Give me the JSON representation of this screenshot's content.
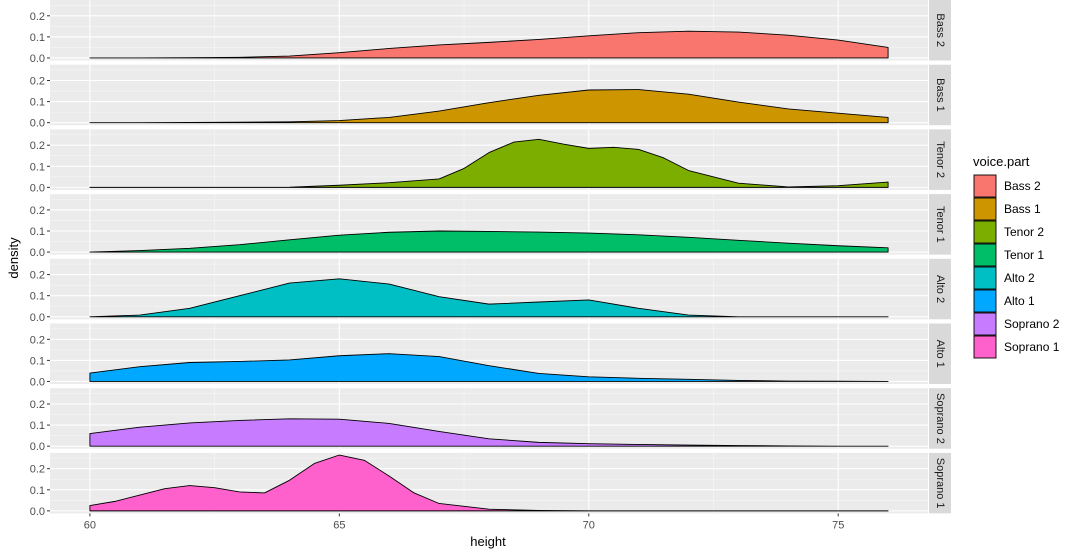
{
  "chart_data": {
    "type": "area",
    "xlabel": "height",
    "ylabel": "density",
    "xlim": [
      59.2,
      76.8
    ],
    "ylim": [
      -0.012,
      0.275
    ],
    "x_ticks": [
      60,
      65,
      70,
      75
    ],
    "y_ticks": [
      0.0,
      0.1,
      0.2
    ],
    "y_tick_labels": [
      "0.0",
      "0.1",
      "0.2"
    ],
    "facet": "rows",
    "legend": {
      "title": "voice.part",
      "position": "right"
    },
    "grid": true,
    "series": [
      {
        "name": "Bass 2",
        "color": "#F8766D",
        "x": [
          60,
          61,
          62,
          63,
          64,
          65,
          66,
          67,
          68,
          69,
          70,
          71,
          72,
          73,
          74,
          75,
          76
        ],
        "values": [
          0.0,
          0.0,
          0.001,
          0.003,
          0.009,
          0.025,
          0.045,
          0.062,
          0.074,
          0.088,
          0.105,
          0.12,
          0.127,
          0.123,
          0.108,
          0.085,
          0.05
        ]
      },
      {
        "name": "Bass 1",
        "color": "#CD9600",
        "x": [
          60,
          61,
          62,
          63,
          64,
          65,
          66,
          67,
          68,
          69,
          70,
          71,
          72,
          73,
          74,
          75,
          76
        ],
        "values": [
          0.0,
          0.0,
          0.001,
          0.002,
          0.004,
          0.01,
          0.025,
          0.055,
          0.095,
          0.13,
          0.155,
          0.157,
          0.135,
          0.098,
          0.065,
          0.045,
          0.025
        ]
      },
      {
        "name": "Tenor 2",
        "color": "#7CAE00",
        "x": [
          60,
          61,
          62,
          63,
          64,
          65,
          66,
          67,
          67.5,
          68,
          68.5,
          69,
          69.5,
          70,
          70.5,
          71,
          71.5,
          72,
          73,
          74,
          75,
          76
        ],
        "values": [
          0.0,
          0.0,
          0.0,
          0.0,
          0.001,
          0.01,
          0.022,
          0.04,
          0.09,
          0.165,
          0.215,
          0.228,
          0.205,
          0.185,
          0.19,
          0.18,
          0.14,
          0.08,
          0.02,
          0.002,
          0.008,
          0.025
        ]
      },
      {
        "name": "Tenor 1",
        "color": "#00BE67",
        "x": [
          60,
          61,
          62,
          63,
          64,
          65,
          66,
          67,
          68,
          69,
          70,
          71,
          72,
          73,
          74,
          75,
          76
        ],
        "values": [
          0.0,
          0.007,
          0.018,
          0.035,
          0.058,
          0.08,
          0.094,
          0.1,
          0.098,
          0.095,
          0.09,
          0.082,
          0.07,
          0.056,
          0.042,
          0.03,
          0.02
        ]
      },
      {
        "name": "Alto 2",
        "color": "#00BFC4",
        "x": [
          60,
          61,
          62,
          63,
          64,
          65,
          66,
          67,
          68,
          69,
          70,
          71,
          72,
          73,
          74,
          75,
          76
        ],
        "values": [
          0.0,
          0.008,
          0.04,
          0.1,
          0.16,
          0.18,
          0.155,
          0.095,
          0.06,
          0.07,
          0.08,
          0.04,
          0.008,
          0.0,
          0.0,
          0.0,
          0.0
        ]
      },
      {
        "name": "Alto 1",
        "color": "#00A9FF",
        "x": [
          60,
          61,
          62,
          63,
          64,
          65,
          66,
          67,
          68,
          69,
          70,
          71,
          72,
          73,
          74,
          75,
          76
        ],
        "values": [
          0.04,
          0.07,
          0.09,
          0.095,
          0.102,
          0.122,
          0.132,
          0.118,
          0.075,
          0.038,
          0.022,
          0.015,
          0.01,
          0.005,
          0.002,
          0.001,
          0.0
        ]
      },
      {
        "name": "Soprano 2",
        "color": "#C77CFF",
        "x": [
          60,
          61,
          62,
          63,
          64,
          65,
          66,
          67,
          68,
          69,
          70,
          71,
          72,
          73,
          74,
          75,
          76
        ],
        "values": [
          0.06,
          0.09,
          0.11,
          0.122,
          0.13,
          0.128,
          0.108,
          0.07,
          0.035,
          0.018,
          0.012,
          0.008,
          0.005,
          0.003,
          0.001,
          0.0,
          0.0
        ]
      },
      {
        "name": "Soprano 1",
        "color": "#FF61CC",
        "x": [
          60,
          60.5,
          61,
          61.5,
          62,
          62.5,
          63,
          63.5,
          64,
          64.5,
          65,
          65.5,
          66,
          66.5,
          67,
          68,
          69,
          70,
          71,
          72,
          73,
          74,
          75,
          76
        ],
        "values": [
          0.025,
          0.045,
          0.075,
          0.105,
          0.12,
          0.11,
          0.09,
          0.085,
          0.145,
          0.225,
          0.265,
          0.24,
          0.165,
          0.085,
          0.035,
          0.008,
          0.002,
          0.0,
          0.0,
          0.0,
          0.0,
          0.0,
          0.0,
          0.0
        ]
      }
    ]
  }
}
